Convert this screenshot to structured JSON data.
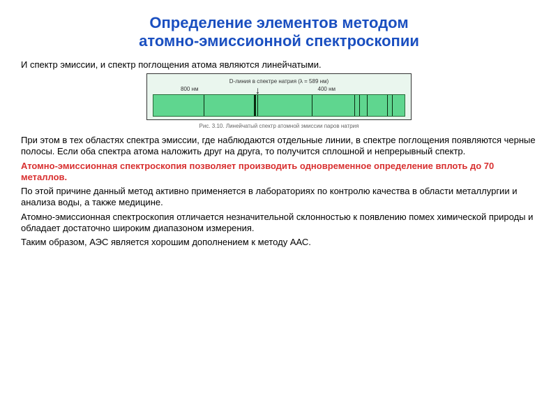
{
  "title_line1": "Определение элементов методом",
  "title_line2": "атомно-эмиссионной спектроскопии",
  "intro": "И спектр эмиссии, и спектр поглощения атома являются линейчатыми.",
  "figure": {
    "top_label": "D-линия в спектре натрия (λ = 589 нм)",
    "left_scale": "800 нм",
    "right_scale": "400 нм",
    "caption": "Рис. 3.10. Линейчатый спектр атомной эмиссии паров натрия",
    "bg_color": "#5fd68f",
    "frame_bg": "#eaf6ee",
    "line_color": "#0a2a10",
    "lines": [
      {
        "left_pct": 20,
        "w": 1
      },
      {
        "left_pct": 40,
        "w": 3
      },
      {
        "left_pct": 41.5,
        "w": 1
      },
      {
        "left_pct": 63,
        "w": 1
      },
      {
        "left_pct": 80,
        "w": 1
      },
      {
        "left_pct": 82,
        "w": 1
      },
      {
        "left_pct": 85,
        "w": 1
      },
      {
        "left_pct": 93,
        "w": 1
      },
      {
        "left_pct": 95,
        "w": 1
      }
    ]
  },
  "p1": " При этом в тех областях спектра эмиссии, где наблюдаются отдельные линии, в спектре поглощения появляются черные полосы. Если оба спектра атома наложить друг на друга, то получится сплошной и непрерывный спектр.",
  "highlight": "Атомно-эмиссионная спектроскопия позволяет производить одновременное определение вплоть до 70 металлов.",
  "p2": "По этой причине данный метод активно применяется в лабораториях по контролю качества в области металлургии и анализа воды, а также медицине.",
  "p3": " Атомно-эмиссионная спектроскопия отличается незначительной склонностью к появлению помех химической природы и обладает достаточно широким диапазоном измерения.",
  "p4": "Таким образом, АЭС является хорошим дополнением к методу ААС."
}
